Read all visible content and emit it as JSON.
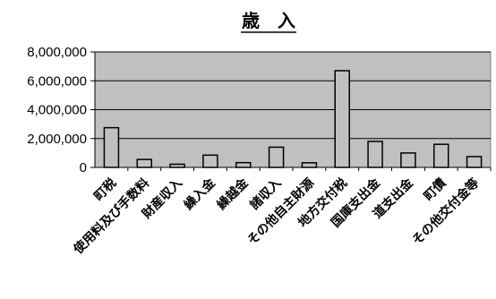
{
  "chart_data": {
    "type": "bar",
    "title": "歳　入",
    "xlabel": "",
    "ylabel": "",
    "ylim": [
      0,
      8000000
    ],
    "yticks": [
      0,
      2000000,
      4000000,
      6000000,
      8000000
    ],
    "ytick_labels": [
      "0",
      "2,000,000",
      "4,000,000",
      "6,000,000",
      "8,000,000"
    ],
    "grid": true,
    "legend": "none",
    "categories": [
      "町税",
      "使用料及び手数料",
      "財産収入",
      "繰入金",
      "繰越金",
      "諸収入",
      "その他自主財源",
      "地方交付税",
      "国庫支出金",
      "道支出金",
      "町債",
      "その他交付金等"
    ],
    "values": [
      2750000,
      550000,
      220000,
      850000,
      330000,
      1400000,
      320000,
      6700000,
      1800000,
      1000000,
      1600000,
      750000
    ],
    "colors": {
      "bar_fill": "#c0c0c0",
      "bar_stroke": "#000000",
      "plot_background": "#c0c0c0",
      "gridline": "#000000"
    }
  }
}
